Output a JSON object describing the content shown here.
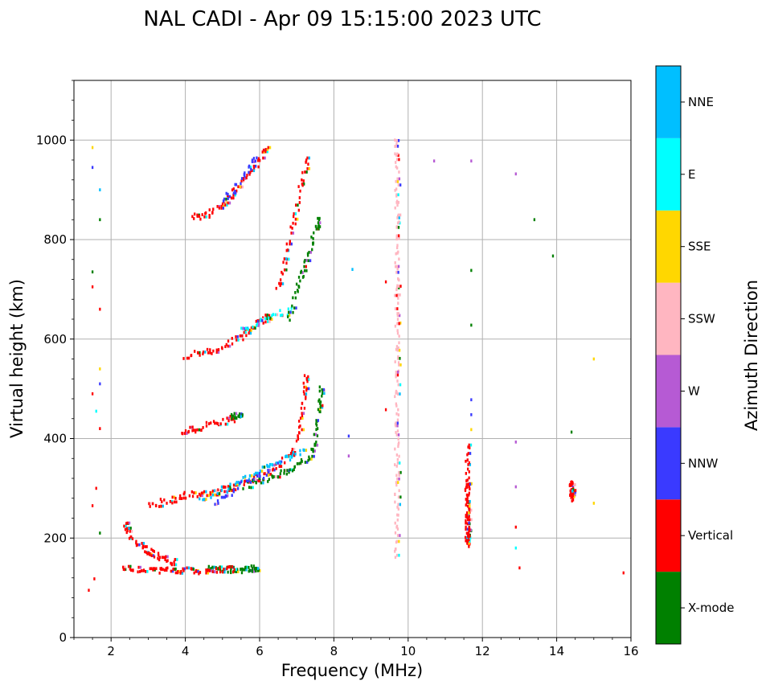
{
  "chart_data": {
    "type": "scatter",
    "title": "NAL CADI - Apr 09 15:15:00 2023 UTC",
    "xlabel": "Frequency (MHz)",
    "ylabel": "Virtual height (km)",
    "xlim": [
      1,
      16
    ],
    "ylim": [
      0,
      1120
    ],
    "xticks": [
      2,
      4,
      6,
      8,
      10,
      12,
      14,
      16
    ],
    "yticks": [
      0,
      200,
      400,
      600,
      800,
      1000
    ],
    "grid": true,
    "colorbar": {
      "title": "Azimuth Direction",
      "categories": [
        {
          "name": "X-mode",
          "color": "#008000"
        },
        {
          "name": "Vertical",
          "color": "#ff0000"
        },
        {
          "name": "NNW",
          "color": "#3a3aff"
        },
        {
          "name": "W",
          "color": "#b65ad4"
        },
        {
          "name": "SSW",
          "color": "#ffb6c1"
        },
        {
          "name": "SSE",
          "color": "#ffd700"
        },
        {
          "name": "E",
          "color": "#00ffff"
        },
        {
          "name": "NNE",
          "color": "#00bfff"
        }
      ]
    },
    "traces": [
      {
        "name": "E-layer X-mode trace",
        "color": "X-mode",
        "points": [
          [
            4.6,
            136
          ],
          [
            4.9,
            136
          ],
          [
            5.2,
            136
          ],
          [
            5.5,
            137
          ],
          [
            5.8,
            137
          ],
          [
            5.95,
            138
          ]
        ]
      },
      {
        "name": "E-layer vertical trace",
        "color": "Vertical",
        "points": [
          [
            2.3,
            140
          ],
          [
            2.8,
            137
          ],
          [
            3.3,
            136
          ],
          [
            3.8,
            135
          ],
          [
            4.3,
            135
          ],
          [
            4.8,
            136
          ],
          [
            5.3,
            137
          ]
        ]
      },
      {
        "name": "E-layer secondary echoes",
        "color": "Vertical",
        "points": [
          [
            2.4,
            230
          ],
          [
            2.5,
            200
          ],
          [
            2.9,
            180
          ],
          [
            3.1,
            170
          ],
          [
            3.4,
            160
          ],
          [
            3.7,
            150
          ]
        ]
      },
      {
        "name": "F-layer vertical trace",
        "color": "Vertical",
        "points": [
          [
            3.0,
            265
          ],
          [
            3.5,
            275
          ],
          [
            4.0,
            285
          ],
          [
            4.5,
            290
          ],
          [
            5.0,
            295
          ],
          [
            5.5,
            305
          ],
          [
            6.0,
            320
          ],
          [
            6.5,
            345
          ],
          [
            6.9,
            375
          ],
          [
            7.1,
            420
          ],
          [
            7.2,
            480
          ],
          [
            7.25,
            520
          ]
        ]
      },
      {
        "name": "F-layer X-mode trace",
        "color": "X-mode",
        "points": [
          [
            5.6,
            305
          ],
          [
            6.1,
            315
          ],
          [
            6.6,
            330
          ],
          [
            7.0,
            345
          ],
          [
            7.4,
            365
          ],
          [
            7.5,
            400
          ],
          [
            7.6,
            460
          ],
          [
            7.65,
            500
          ]
        ]
      },
      {
        "name": "F-layer NNE echoes",
        "color": "NNE",
        "points": [
          [
            4.4,
            280
          ],
          [
            5.2,
            300
          ],
          [
            5.9,
            330
          ],
          [
            6.6,
            355
          ],
          [
            7.2,
            375
          ]
        ]
      },
      {
        "name": "F-layer NNW echoes",
        "color": "NNW",
        "points": [
          [
            4.8,
            270
          ],
          [
            5.4,
            300
          ],
          [
            6.2,
            330
          ]
        ]
      },
      {
        "name": "2F vertical trace",
        "color": "Vertical",
        "points": [
          [
            3.9,
            412
          ],
          [
            4.3,
            420
          ],
          [
            4.8,
            430
          ],
          [
            5.3,
            440
          ]
        ]
      },
      {
        "name": "2F X-mode patch",
        "color": "X-mode",
        "points": [
          [
            5.2,
            445
          ],
          [
            5.5,
            445
          ]
        ]
      },
      {
        "name": "3F vertical trace",
        "color": "Vertical",
        "points": [
          [
            4.0,
            565
          ],
          [
            4.5,
            572
          ],
          [
            5.0,
            585
          ],
          [
            5.5,
            605
          ],
          [
            5.9,
            630
          ],
          [
            6.3,
            645
          ]
        ]
      },
      {
        "name": "3F E echoes",
        "color": "E",
        "points": [
          [
            5.5,
            615
          ],
          [
            6.1,
            640
          ],
          [
            6.8,
            655
          ]
        ]
      },
      {
        "name": "4F vertical trace",
        "color": "Vertical",
        "points": [
          [
            4.2,
            845
          ],
          [
            4.6,
            850
          ],
          [
            5.0,
            870
          ],
          [
            5.4,
            900
          ],
          [
            5.8,
            940
          ],
          [
            6.2,
            980
          ]
        ]
      },
      {
        "name": "4F NNW echoes",
        "color": "NNW",
        "points": [
          [
            5.0,
            875
          ],
          [
            5.5,
            920
          ],
          [
            5.9,
            960
          ]
        ]
      },
      {
        "name": "High-order X-mode column",
        "color": "X-mode",
        "points": [
          [
            6.8,
            640
          ],
          [
            7.0,
            700
          ],
          [
            7.2,
            740
          ],
          [
            7.4,
            790
          ],
          [
            7.6,
            840
          ]
        ]
      },
      {
        "name": "High-order vertical column",
        "color": "Vertical",
        "points": [
          [
            6.5,
            700
          ],
          [
            6.7,
            760
          ],
          [
            6.9,
            830
          ],
          [
            7.1,
            900
          ],
          [
            7.3,
            960
          ]
        ]
      },
      {
        "name": "SSW interference 9.7 MHz",
        "color": "SSW",
        "points": [
          [
            9.7,
            160
          ],
          [
            9.7,
            220
          ],
          [
            9.7,
            280
          ],
          [
            9.7,
            340
          ],
          [
            9.7,
            400
          ],
          [
            9.7,
            460
          ],
          [
            9.7,
            520
          ],
          [
            9.7,
            580
          ],
          [
            9.7,
            640
          ],
          [
            9.7,
            700
          ],
          [
            9.7,
            760
          ],
          [
            9.7,
            820
          ],
          [
            9.7,
            880
          ],
          [
            9.7,
            940
          ],
          [
            9.7,
            1000
          ]
        ]
      },
      {
        "name": "Vertical interference 11.6 MHz",
        "color": "Vertical",
        "points": [
          [
            11.6,
            185
          ],
          [
            11.6,
            200
          ],
          [
            11.6,
            215
          ],
          [
            11.6,
            235
          ],
          [
            11.6,
            250
          ],
          [
            11.6,
            270
          ],
          [
            11.6,
            300
          ],
          [
            11.6,
            320
          ],
          [
            11.6,
            380
          ]
        ]
      },
      {
        "name": "Vertical cluster 14.4 MHz",
        "color": "Vertical",
        "points": [
          [
            14.4,
            280
          ],
          [
            14.4,
            290
          ],
          [
            14.4,
            300
          ],
          [
            14.4,
            310
          ]
        ]
      },
      {
        "name": "Isolated echoes",
        "color": "mixed",
        "points": [
          [
            1.5,
            985
          ],
          [
            1.5,
            945
          ],
          [
            1.7,
            900
          ],
          [
            1.7,
            840
          ],
          [
            1.5,
            735
          ],
          [
            1.5,
            705
          ],
          [
            1.7,
            660
          ],
          [
            1.7,
            540
          ],
          [
            1.7,
            510
          ],
          [
            1.5,
            490
          ],
          [
            1.6,
            455
          ],
          [
            1.7,
            420
          ],
          [
            1.6,
            300
          ],
          [
            1.5,
            265
          ],
          [
            1.7,
            210
          ],
          [
            1.55,
            118
          ],
          [
            1.4,
            95
          ],
          [
            8.5,
            740
          ],
          [
            8.4,
            365
          ],
          [
            8.4,
            405
          ],
          [
            9.4,
            715
          ],
          [
            9.4,
            458
          ],
          [
            10.7,
            958
          ],
          [
            11.7,
            958
          ],
          [
            11.7,
            738
          ],
          [
            11.7,
            628
          ],
          [
            11.7,
            478
          ],
          [
            11.7,
            448
          ],
          [
            11.7,
            418
          ],
          [
            12.9,
            932
          ],
          [
            12.9,
            393
          ],
          [
            12.9,
            303
          ],
          [
            12.9,
            222
          ],
          [
            12.9,
            180
          ],
          [
            13.0,
            140
          ],
          [
            13.4,
            840
          ],
          [
            13.9,
            767
          ],
          [
            14.4,
            413
          ],
          [
            15.0,
            560
          ],
          [
            15.0,
            270
          ],
          [
            15.8,
            130
          ]
        ]
      }
    ]
  }
}
